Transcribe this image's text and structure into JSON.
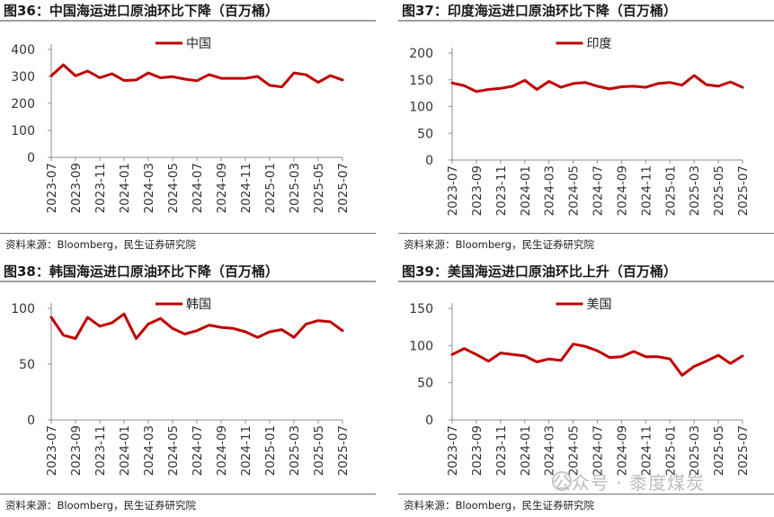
{
  "panels": [
    {
      "title": "图36：中国海运进口原油环比下降（百万桶）",
      "source": "资料来源：Bloomberg，民生证券研究院"
    },
    {
      "title": "图37：印度海运进口原油环比下降（百万桶）",
      "source": "资料来源：Bloomberg，民生证券研究院"
    },
    {
      "title": "图38：韩国海运进口原油环比下降（百万桶）",
      "source": "资料来源：Bloomberg，民生证券研究院"
    },
    {
      "title": "图39：美国海运进口原油环比上升（百万桶）",
      "source": "资料来源：Bloomberg，民生证券研究院"
    }
  ],
  "watermark": "公众号 · 黍度煤炭",
  "chart_data": [
    {
      "type": "line",
      "categories": [
        "2023-07",
        "2023-09",
        "2023-11",
        "2024-01",
        "2024-03",
        "2024-05",
        "2024-07",
        "2024-09",
        "2024-11",
        "2025-01",
        "2025-03",
        "2025-05",
        "2025-07"
      ],
      "x": [
        "2023-07",
        "2023-08",
        "2023-09",
        "2023-10",
        "2023-11",
        "2023-12",
        "2024-01",
        "2024-02",
        "2024-03",
        "2024-04",
        "2024-05",
        "2024-06",
        "2024-07",
        "2024-08",
        "2024-09",
        "2024-10",
        "2024-11",
        "2024-12",
        "2025-01",
        "2025-02",
        "2025-03",
        "2025-04",
        "2025-05",
        "2025-06",
        "2025-07"
      ],
      "series": [
        {
          "name": "中国",
          "values": [
            302,
            343,
            302,
            320,
            295,
            310,
            285,
            287,
            313,
            295,
            299,
            290,
            284,
            307,
            293,
            293,
            293,
            300,
            267,
            261,
            313,
            306,
            278,
            303,
            287
          ],
          "color": "#c00000"
        }
      ],
      "yticks": [
        0,
        100,
        200,
        300,
        400
      ],
      "ylim": [
        0,
        400
      ],
      "legend": "top-center"
    },
    {
      "type": "line",
      "categories": [
        "2023-07",
        "2023-09",
        "2023-11",
        "2024-01",
        "2024-03",
        "2024-05",
        "2024-07",
        "2024-09",
        "2024-11",
        "2025-01",
        "2025-03",
        "2025-05",
        "2025-07"
      ],
      "x": [
        "2023-07",
        "2023-08",
        "2023-09",
        "2023-10",
        "2023-11",
        "2023-12",
        "2024-01",
        "2024-02",
        "2024-03",
        "2024-04",
        "2024-05",
        "2024-06",
        "2024-07",
        "2024-08",
        "2024-09",
        "2024-10",
        "2024-11",
        "2024-12",
        "2025-01",
        "2025-02",
        "2025-03",
        "2025-04",
        "2025-05",
        "2025-06",
        "2025-07"
      ],
      "series": [
        {
          "name": "印度",
          "values": [
            144,
            139,
            128,
            132,
            134,
            138,
            149,
            132,
            147,
            136,
            143,
            145,
            138,
            133,
            137,
            138,
            136,
            143,
            145,
            140,
            158,
            141,
            138,
            146,
            136
          ],
          "color": "#c00000"
        }
      ],
      "yticks": [
        0,
        50,
        100,
        150,
        200
      ],
      "ylim": [
        0,
        200
      ],
      "legend": "top-center"
    },
    {
      "type": "line",
      "categories": [
        "2023-07",
        "2023-09",
        "2023-11",
        "2024-01",
        "2024-03",
        "2024-05",
        "2024-07",
        "2024-09",
        "2024-11",
        "2025-01",
        "2025-03",
        "2025-05",
        "2025-07"
      ],
      "x": [
        "2023-07",
        "2023-08",
        "2023-09",
        "2023-10",
        "2023-11",
        "2023-12",
        "2024-01",
        "2024-02",
        "2024-03",
        "2024-04",
        "2024-05",
        "2024-06",
        "2024-07",
        "2024-08",
        "2024-09",
        "2024-10",
        "2024-11",
        "2024-12",
        "2025-01",
        "2025-02",
        "2025-03",
        "2025-04",
        "2025-05",
        "2025-06",
        "2025-07"
      ],
      "series": [
        {
          "name": "韩国",
          "values": [
            92,
            76,
            73,
            92,
            84,
            87,
            95,
            73,
            86,
            91,
            82,
            77,
            80,
            85,
            83,
            82,
            79,
            74,
            79,
            81,
            74,
            86,
            89,
            88,
            80
          ],
          "color": "#c00000"
        }
      ],
      "yticks": [
        0,
        50,
        100
      ],
      "ylim": [
        0,
        100
      ],
      "legend": "top-center"
    },
    {
      "type": "line",
      "categories": [
        "2023-07",
        "2023-09",
        "2023-11",
        "2024-01",
        "2024-03",
        "2024-05",
        "2024-07",
        "2024-09",
        "2024-11",
        "2025-01",
        "2025-03",
        "2025-05",
        "2025-07"
      ],
      "x": [
        "2023-07",
        "2023-08",
        "2023-09",
        "2023-10",
        "2023-11",
        "2023-12",
        "2024-01",
        "2024-02",
        "2024-03",
        "2024-04",
        "2024-05",
        "2024-06",
        "2024-07",
        "2024-08",
        "2024-09",
        "2024-10",
        "2024-11",
        "2024-12",
        "2025-01",
        "2025-02",
        "2025-03",
        "2025-04",
        "2025-05",
        "2025-06",
        "2025-07"
      ],
      "series": [
        {
          "name": "美国",
          "values": [
            88,
            96,
            88,
            79,
            90,
            88,
            86,
            78,
            82,
            80,
            102,
            99,
            93,
            84,
            85,
            92,
            85,
            85,
            82,
            60,
            72,
            79,
            87,
            76,
            86
          ],
          "color": "#c00000"
        }
      ],
      "yticks": [
        0,
        50,
        100,
        150
      ],
      "ylim": [
        0,
        150
      ],
      "legend": "top-center"
    }
  ]
}
